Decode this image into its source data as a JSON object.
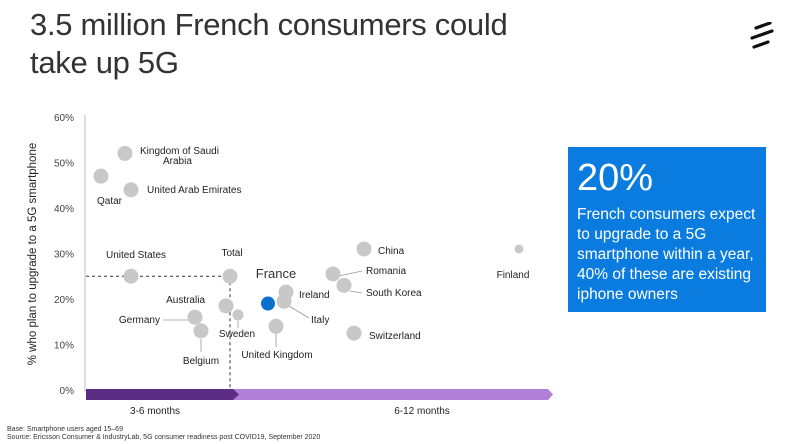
{
  "title": "3.5 million French consumers could take up 5G",
  "callout": {
    "big": "20%",
    "text": "French consumers expect to upgrade to a 5G smartphone within a year, 40% of these are existing iphone owners",
    "color": "#0a7ce0"
  },
  "footer": {
    "base": "Base: Smartphone users aged 15–69",
    "source": "Source: Ericsson Consumer & IndustryLab, 5G consumer readiness post COVID19, September 2020"
  },
  "logo_icon": "ericsson-logo-icon",
  "chart_data": {
    "type": "scatter",
    "ylabel": "% who plan to upgrade to a 5G smartphone",
    "yticks": [
      "0%",
      "10%",
      "20%",
      "30%",
      "40%",
      "50%",
      "60%"
    ],
    "ylim": [
      0,
      60
    ],
    "x_axis": "timeline",
    "x_bands": [
      {
        "label": "3-6 months",
        "color": "#5a2d82"
      },
      {
        "label": "6-12 months",
        "color": "#b07fd8"
      }
    ],
    "grid": false,
    "reference_point": {
      "name": "Total",
      "y": 25
    },
    "highlight": {
      "name": "France",
      "color": "#0a6fcf"
    },
    "point_color": "#c8c8c8",
    "points": [
      {
        "name": "Kingdom of Saudi Arabia",
        "y": 52
      },
      {
        "name": "Qatar",
        "y": 47
      },
      {
        "name": "United Arab Emirates",
        "y": 44
      },
      {
        "name": "United States",
        "y": 25
      },
      {
        "name": "Total",
        "y": 25
      },
      {
        "name": "Australia",
        "y": 18.5
      },
      {
        "name": "Germany",
        "y": 16
      },
      {
        "name": "Belgium",
        "y": 13
      },
      {
        "name": "Sweden",
        "y": 16.5
      },
      {
        "name": "France",
        "y": 19
      },
      {
        "name": "Ireland",
        "y": 21.5
      },
      {
        "name": "Italy",
        "y": 19.5
      },
      {
        "name": "United Kingdom",
        "y": 14
      },
      {
        "name": "China",
        "y": 31
      },
      {
        "name": "Romania",
        "y": 25.5
      },
      {
        "name": "South Korea",
        "y": 23
      },
      {
        "name": "Switzerland",
        "y": 12.5
      },
      {
        "name": "Finland",
        "y": 31
      }
    ]
  }
}
